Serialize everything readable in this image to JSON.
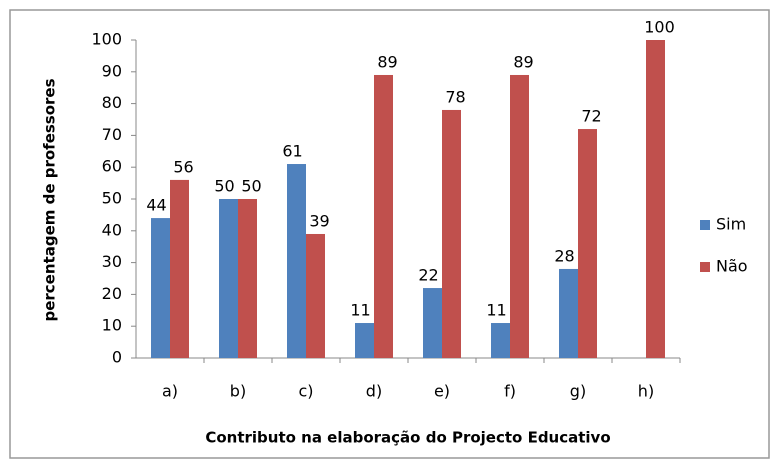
{
  "chart_data": {
    "type": "bar",
    "x_label": "Contributo na elaboração do Projecto Educativo",
    "y_label": "percentagem de professores",
    "categories": [
      "a)",
      "b)",
      "c)",
      "d)",
      "e)",
      "f)",
      "g)",
      "h)"
    ],
    "series": [
      {
        "name": "Sim",
        "color": "#4f81bd",
        "values": [
          44,
          50,
          61,
          11,
          22,
          11,
          28,
          null
        ]
      },
      {
        "name": "Não",
        "color": "#c0504d",
        "values": [
          56,
          50,
          39,
          89,
          78,
          89,
          72,
          100
        ]
      }
    ],
    "ylim": [
      0,
      100
    ],
    "yticks": [
      0,
      10,
      20,
      30,
      40,
      50,
      60,
      70,
      80,
      90,
      100
    ],
    "grid": false,
    "legend": "right"
  }
}
